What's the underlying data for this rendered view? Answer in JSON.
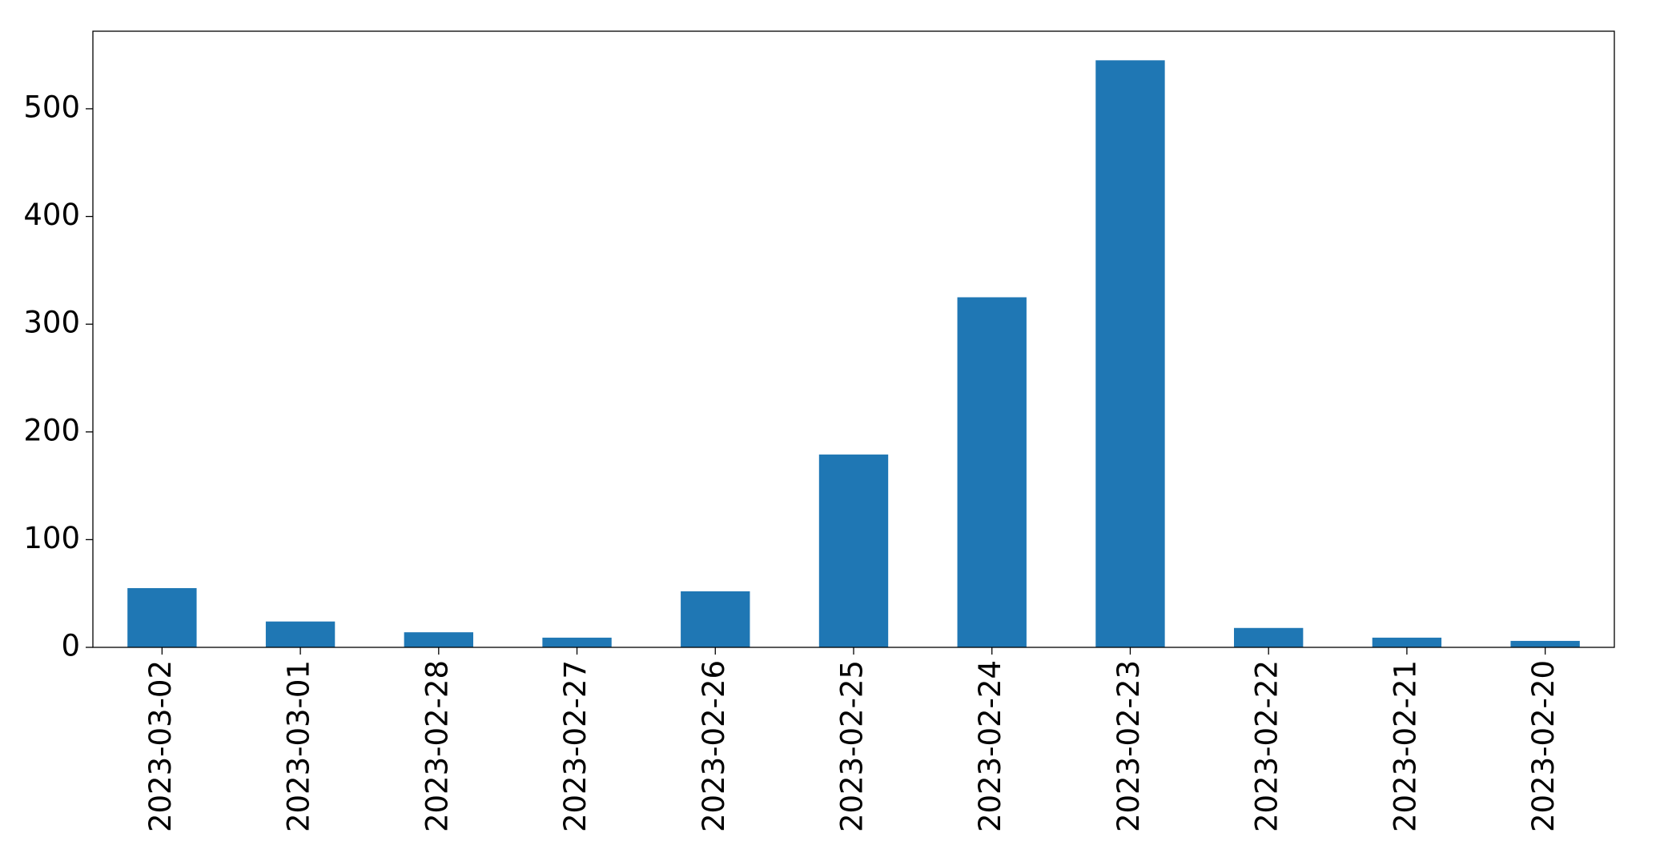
{
  "chart_data": {
    "type": "bar",
    "categories": [
      "2023-03-02",
      "2023-03-01",
      "2023-02-28",
      "2023-02-27",
      "2023-02-26",
      "2023-02-25",
      "2023-02-24",
      "2023-02-23",
      "2023-02-22",
      "2023-02-21",
      "2023-02-20"
    ],
    "values": [
      55,
      24,
      14,
      9,
      52,
      179,
      325,
      545,
      18,
      9,
      6
    ],
    "color": "#1f77b4",
    "ylim": [
      0,
      572
    ],
    "yticks": [
      0,
      100,
      200,
      300,
      400,
      500
    ],
    "grid": false
  }
}
